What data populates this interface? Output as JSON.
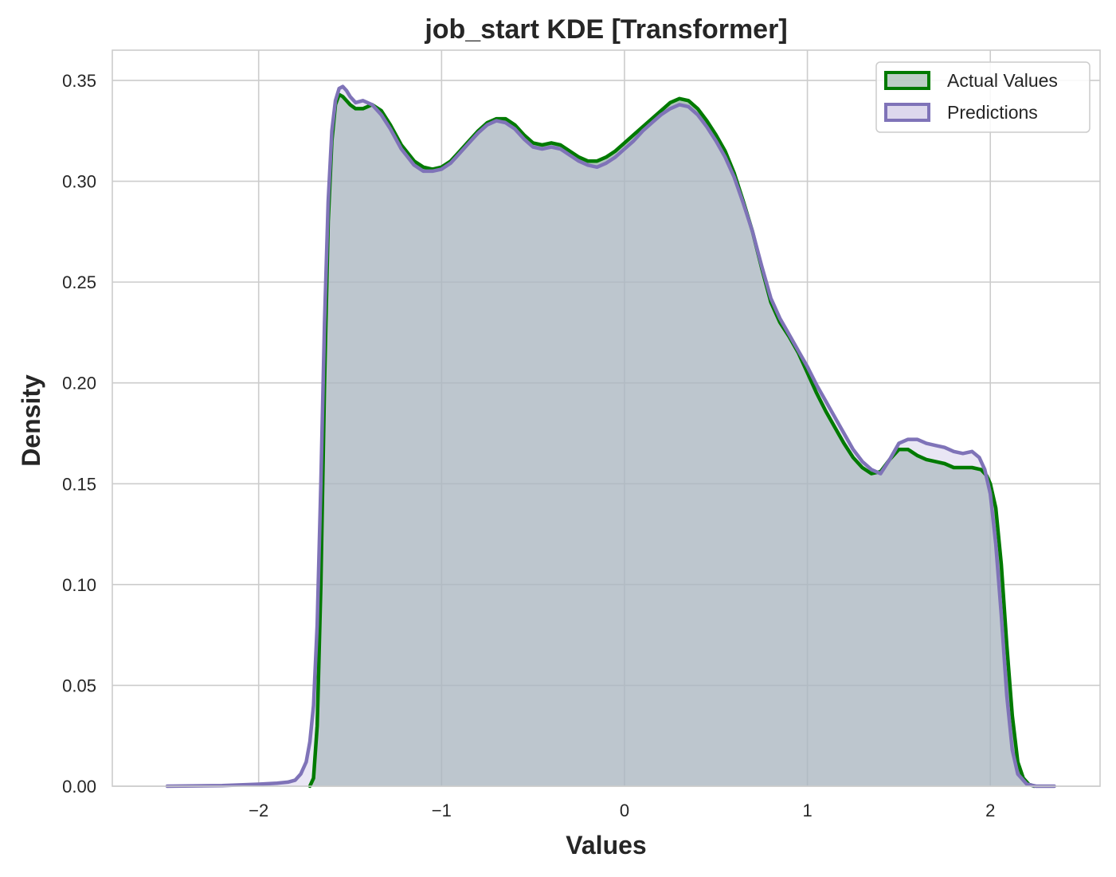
{
  "chart_data": {
    "type": "area",
    "title": "job_start KDE [Transformer]",
    "xlabel": "Values",
    "ylabel": "Density",
    "xlim": [
      -2.8,
      2.6
    ],
    "ylim": [
      0,
      0.365
    ],
    "xticks": [
      -2,
      -1,
      0,
      1,
      2
    ],
    "xtick_labels": [
      "−2",
      "−1",
      "0",
      "1",
      "2"
    ],
    "yticks": [
      0.0,
      0.05,
      0.1,
      0.15,
      0.2,
      0.25,
      0.3,
      0.35
    ],
    "ytick_labels": [
      "0.00",
      "0.05",
      "0.10",
      "0.15",
      "0.20",
      "0.25",
      "0.30",
      "0.35"
    ],
    "grid": true,
    "legend_position": "top-right",
    "series": [
      {
        "name": "Actual Values",
        "color": "#007a00",
        "fill": "#7a9e8e",
        "x": [
          -1.72,
          -1.7,
          -1.68,
          -1.66,
          -1.64,
          -1.62,
          -1.6,
          -1.58,
          -1.56,
          -1.54,
          -1.52,
          -1.5,
          -1.47,
          -1.43,
          -1.38,
          -1.33,
          -1.28,
          -1.22,
          -1.15,
          -1.1,
          -1.05,
          -1.0,
          -0.95,
          -0.9,
          -0.85,
          -0.8,
          -0.75,
          -0.7,
          -0.65,
          -0.6,
          -0.55,
          -0.5,
          -0.45,
          -0.4,
          -0.35,
          -0.3,
          -0.25,
          -0.2,
          -0.15,
          -0.1,
          -0.05,
          0.0,
          0.05,
          0.1,
          0.15,
          0.2,
          0.25,
          0.3,
          0.35,
          0.4,
          0.45,
          0.5,
          0.55,
          0.6,
          0.65,
          0.7,
          0.75,
          0.8,
          0.85,
          0.9,
          0.95,
          1.0,
          1.05,
          1.1,
          1.15,
          1.2,
          1.25,
          1.3,
          1.35,
          1.4,
          1.45,
          1.5,
          1.55,
          1.6,
          1.65,
          1.7,
          1.75,
          1.8,
          1.85,
          1.9,
          1.95,
          1.98,
          2.0,
          2.03,
          2.06,
          2.09,
          2.12,
          2.15,
          2.18,
          2.21,
          2.24
        ],
        "y": [
          0.0,
          0.004,
          0.03,
          0.1,
          0.2,
          0.28,
          0.32,
          0.338,
          0.343,
          0.342,
          0.34,
          0.338,
          0.336,
          0.336,
          0.338,
          0.335,
          0.328,
          0.318,
          0.31,
          0.307,
          0.306,
          0.307,
          0.31,
          0.315,
          0.32,
          0.325,
          0.329,
          0.331,
          0.331,
          0.328,
          0.323,
          0.319,
          0.318,
          0.319,
          0.318,
          0.315,
          0.312,
          0.31,
          0.31,
          0.312,
          0.315,
          0.319,
          0.323,
          0.327,
          0.331,
          0.335,
          0.339,
          0.341,
          0.34,
          0.336,
          0.33,
          0.323,
          0.315,
          0.304,
          0.29,
          0.275,
          0.257,
          0.24,
          0.23,
          0.223,
          0.215,
          0.205,
          0.195,
          0.186,
          0.178,
          0.17,
          0.163,
          0.158,
          0.155,
          0.156,
          0.162,
          0.167,
          0.167,
          0.164,
          0.162,
          0.161,
          0.16,
          0.158,
          0.158,
          0.158,
          0.157,
          0.154,
          0.15,
          0.138,
          0.11,
          0.07,
          0.035,
          0.012,
          0.004,
          0.001,
          0.0
        ]
      },
      {
        "name": "Predictions",
        "color": "#7f73b8",
        "fill": "#cfc8e6",
        "x": [
          -2.5,
          -2.2,
          -2.0,
          -1.9,
          -1.84,
          -1.8,
          -1.77,
          -1.74,
          -1.72,
          -1.7,
          -1.68,
          -1.66,
          -1.64,
          -1.62,
          -1.6,
          -1.58,
          -1.56,
          -1.54,
          -1.52,
          -1.5,
          -1.47,
          -1.43,
          -1.38,
          -1.33,
          -1.28,
          -1.22,
          -1.15,
          -1.1,
          -1.05,
          -1.0,
          -0.95,
          -0.9,
          -0.85,
          -0.8,
          -0.75,
          -0.7,
          -0.65,
          -0.6,
          -0.55,
          -0.5,
          -0.45,
          -0.4,
          -0.35,
          -0.3,
          -0.25,
          -0.2,
          -0.15,
          -0.1,
          -0.05,
          0.0,
          0.05,
          0.1,
          0.15,
          0.2,
          0.25,
          0.3,
          0.35,
          0.4,
          0.45,
          0.5,
          0.55,
          0.6,
          0.65,
          0.7,
          0.75,
          0.8,
          0.85,
          0.9,
          0.95,
          1.0,
          1.05,
          1.1,
          1.15,
          1.2,
          1.25,
          1.3,
          1.35,
          1.4,
          1.45,
          1.5,
          1.55,
          1.6,
          1.65,
          1.7,
          1.75,
          1.8,
          1.85,
          1.9,
          1.94,
          1.97,
          2.0,
          2.03,
          2.06,
          2.09,
          2.12,
          2.15,
          2.2,
          2.25,
          2.35
        ],
        "y": [
          0.0,
          0.0003,
          0.001,
          0.0015,
          0.002,
          0.003,
          0.006,
          0.012,
          0.022,
          0.04,
          0.08,
          0.15,
          0.23,
          0.29,
          0.325,
          0.34,
          0.346,
          0.347,
          0.345,
          0.342,
          0.339,
          0.34,
          0.338,
          0.333,
          0.326,
          0.316,
          0.308,
          0.305,
          0.305,
          0.306,
          0.309,
          0.314,
          0.319,
          0.324,
          0.328,
          0.33,
          0.329,
          0.326,
          0.321,
          0.317,
          0.316,
          0.317,
          0.316,
          0.313,
          0.31,
          0.308,
          0.307,
          0.309,
          0.312,
          0.316,
          0.32,
          0.325,
          0.329,
          0.333,
          0.336,
          0.338,
          0.337,
          0.333,
          0.327,
          0.32,
          0.312,
          0.302,
          0.289,
          0.275,
          0.258,
          0.242,
          0.232,
          0.224,
          0.216,
          0.208,
          0.199,
          0.191,
          0.183,
          0.175,
          0.167,
          0.161,
          0.157,
          0.155,
          0.162,
          0.17,
          0.172,
          0.172,
          0.17,
          0.169,
          0.168,
          0.166,
          0.165,
          0.166,
          0.163,
          0.157,
          0.145,
          0.12,
          0.085,
          0.045,
          0.018,
          0.006,
          0.001,
          0.0,
          0.0
        ]
      }
    ]
  }
}
